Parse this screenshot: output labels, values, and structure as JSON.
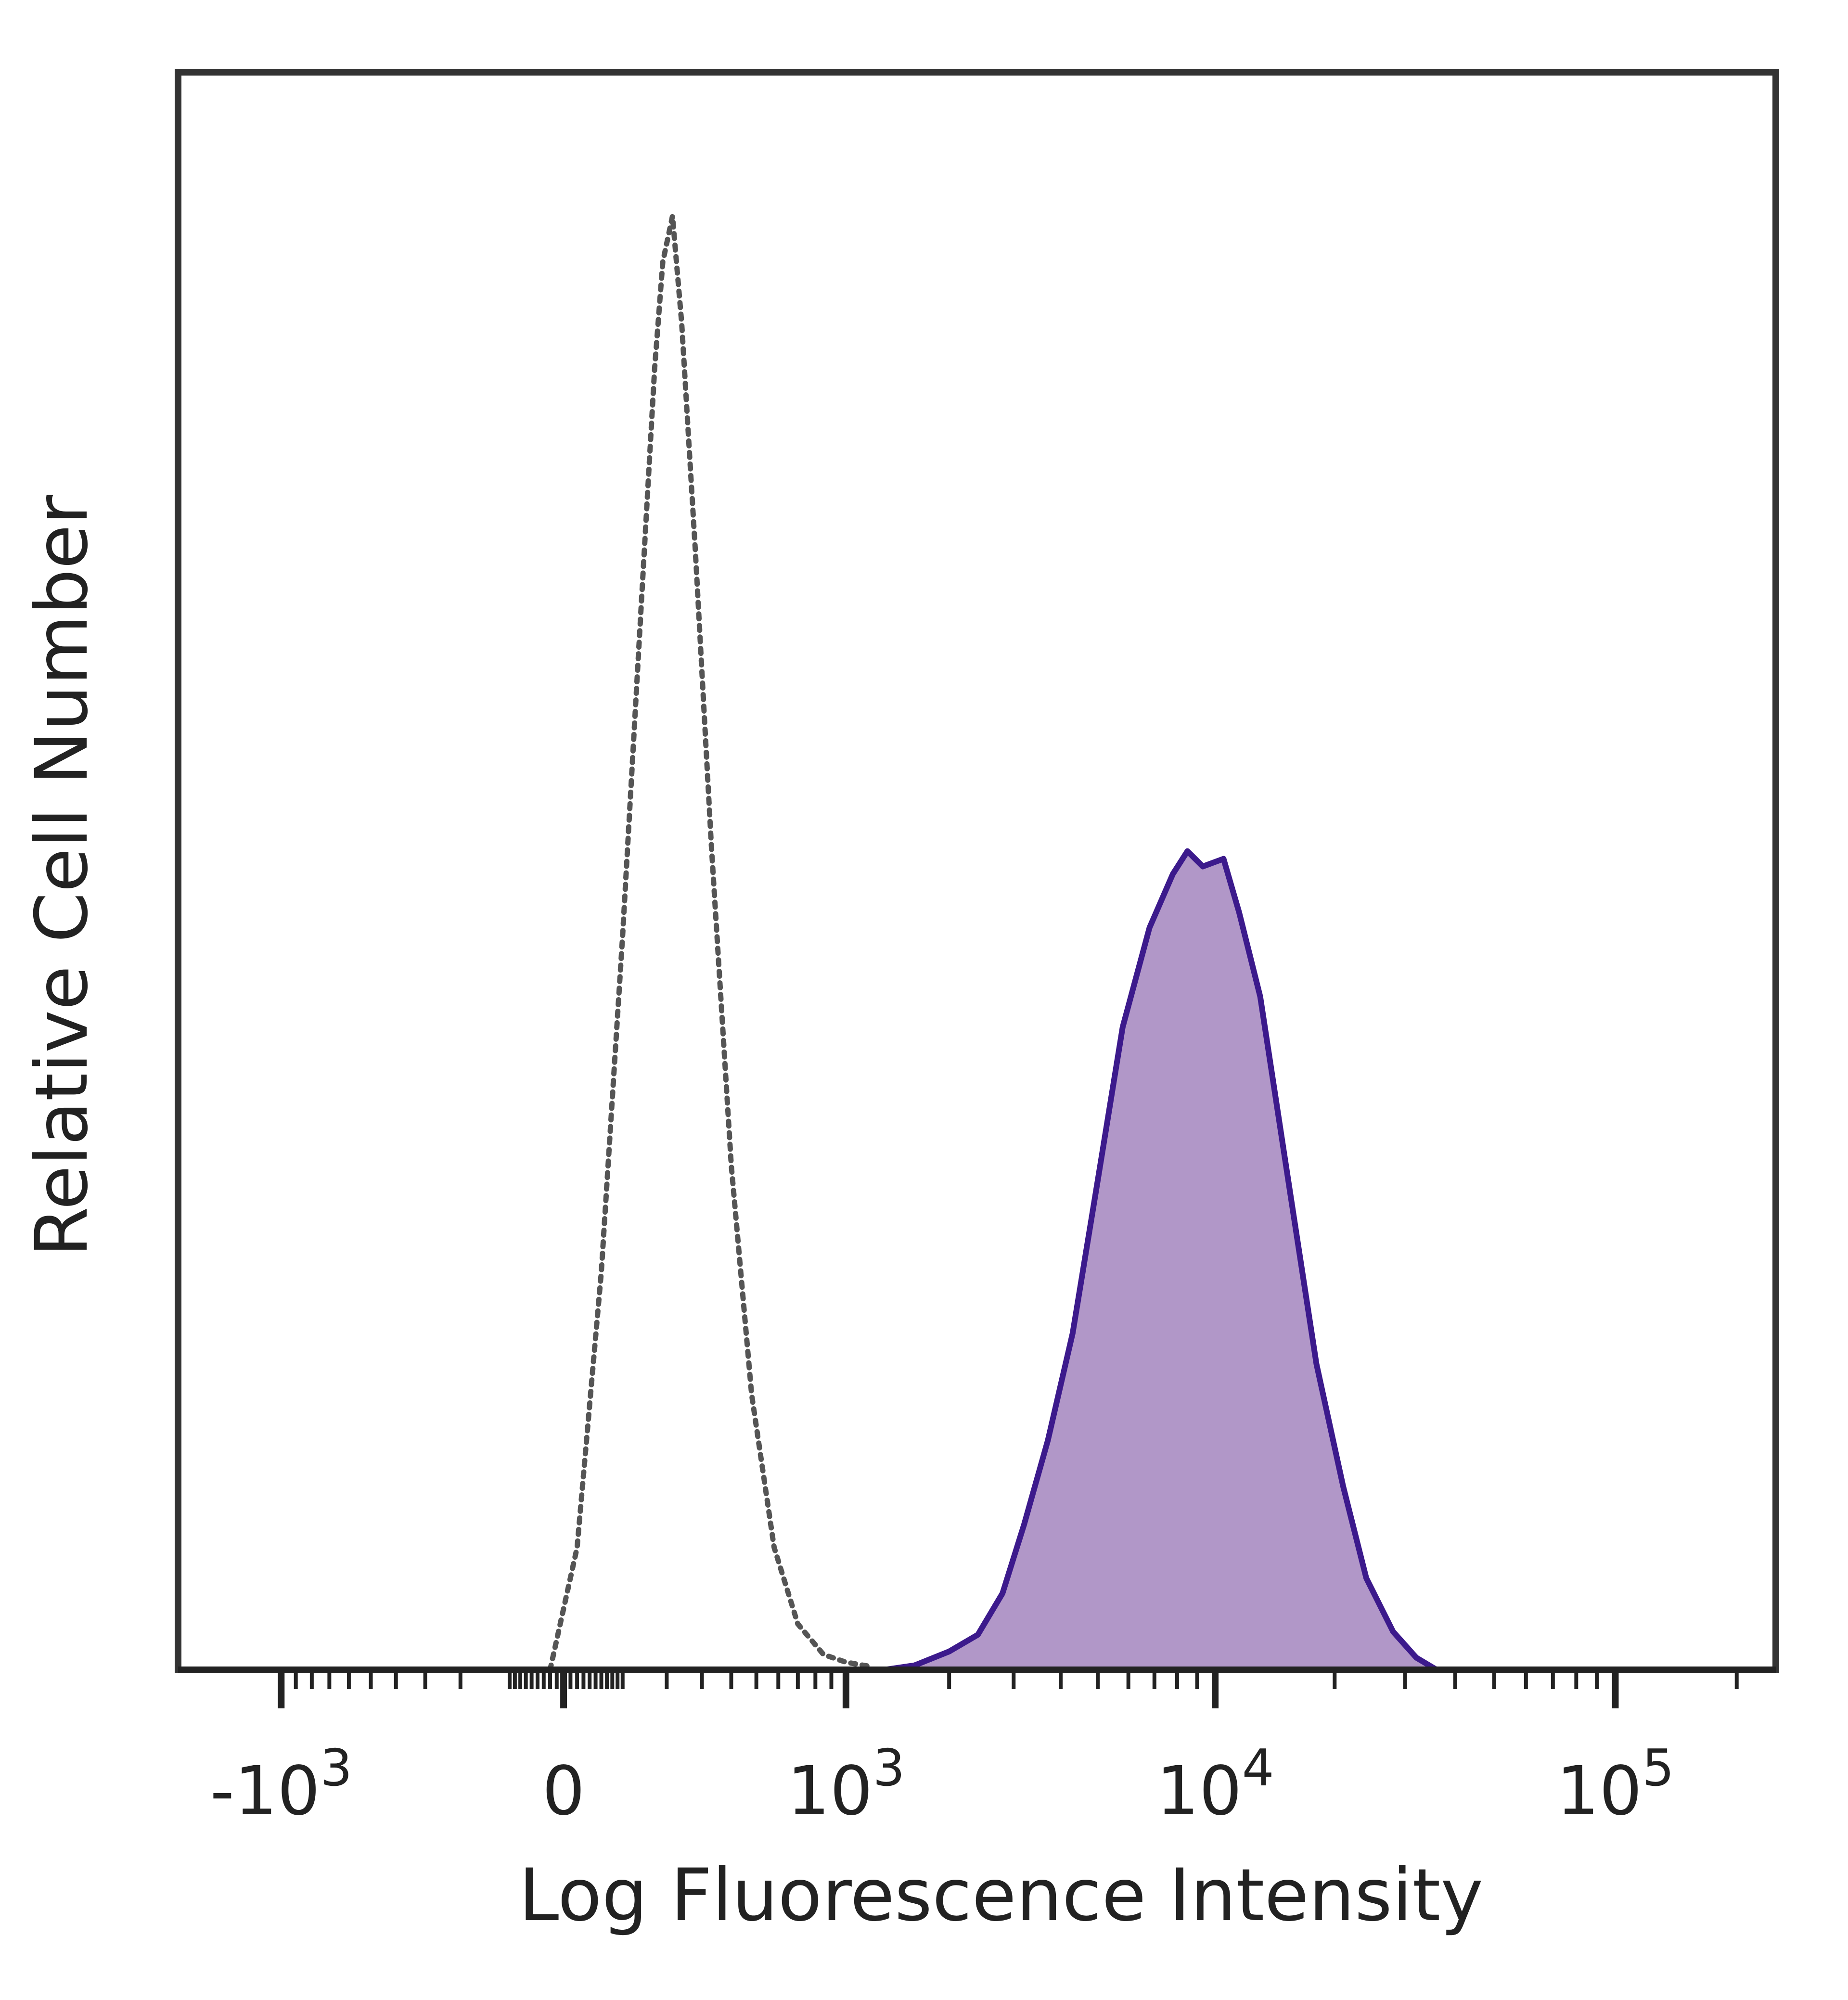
{
  "chart_data": {
    "type": "area",
    "xlabel": "Log Fluorescence Intensity",
    "ylabel": "Relative Cell Number",
    "x_scale": "biexponential",
    "xlim": [
      -2000,
      250000
    ],
    "ylim": [
      0,
      100
    ],
    "grid": false,
    "legend": "none",
    "x_ticks": [
      {
        "value": -1000,
        "base": "-10",
        "exp": "3"
      },
      {
        "value": 0,
        "base": "0",
        "exp": ""
      },
      {
        "value": 1000,
        "base": "10",
        "exp": "3"
      },
      {
        "value": 10000,
        "base": "10",
        "exp": "4"
      },
      {
        "value": 100000,
        "base": "10",
        "exp": "5"
      }
    ],
    "series": [
      {
        "style": "dotted-outline",
        "color": "#555555",
        "points": [
          [
            -20,
            0
          ],
          [
            20,
            8
          ],
          [
            60,
            26
          ],
          [
            100,
            48
          ],
          [
            140,
            70
          ],
          [
            170,
            85
          ],
          [
            190,
            92
          ],
          [
            215,
            95
          ],
          [
            240,
            88
          ],
          [
            280,
            73
          ],
          [
            330,
            54
          ],
          [
            400,
            33
          ],
          [
            480,
            18
          ],
          [
            580,
            8
          ],
          [
            700,
            3
          ],
          [
            850,
            1
          ],
          [
            1000,
            0.5
          ],
          [
            1200,
            0.2
          ]
        ]
      },
      {
        "style": "filled",
        "fill": "#b197c8",
        "stroke": "#3c1a8c",
        "points": [
          [
            1300,
            0
          ],
          [
            1600,
            0.3
          ],
          [
            2000,
            1.2
          ],
          [
            2400,
            2.3
          ],
          [
            2800,
            5
          ],
          [
            3200,
            9.5
          ],
          [
            3700,
            15
          ],
          [
            4300,
            22
          ],
          [
            5000,
            32
          ],
          [
            5800,
            42
          ],
          [
            6800,
            48.5
          ],
          [
            7800,
            52
          ],
          [
            8500,
            53.5
          ],
          [
            9300,
            52.5
          ],
          [
            10500,
            53
          ],
          [
            11500,
            49.5
          ],
          [
            13000,
            44
          ],
          [
            15500,
            31
          ],
          [
            18000,
            20
          ],
          [
            21000,
            12
          ],
          [
            24000,
            6
          ],
          [
            28000,
            2.5
          ],
          [
            32000,
            0.8
          ],
          [
            36000,
            0
          ]
        ]
      }
    ]
  }
}
